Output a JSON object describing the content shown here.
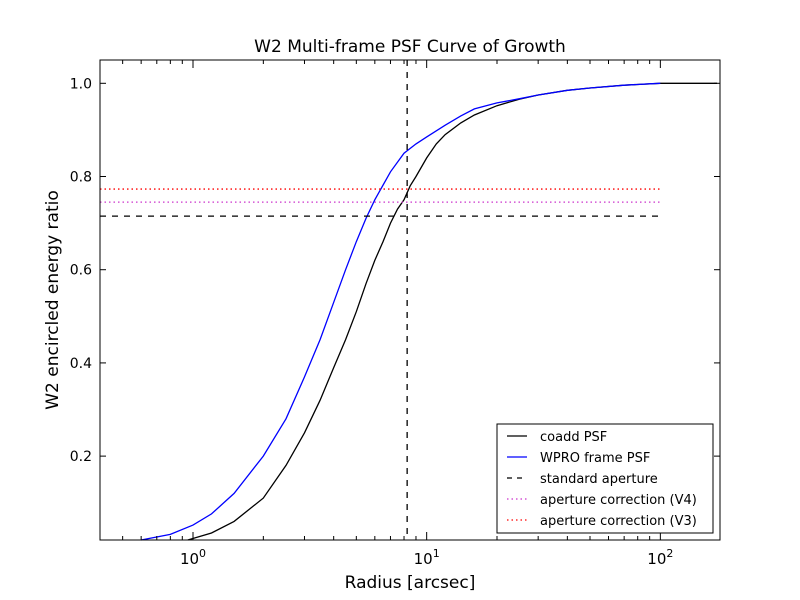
{
  "chart_data": {
    "type": "line",
    "title": "W2 Multi-frame PSF Curve of Growth",
    "xlabel": "Radius [arcsec]",
    "ylabel": "W2 encircled energy ratio",
    "xscale": "log",
    "xlim": [
      0.4,
      180
    ],
    "ylim": [
      0.02,
      1.05
    ],
    "grid": false,
    "legend_position": "lower-right",
    "x_ticks": [
      {
        "value": 1,
        "base": "10",
        "exp": "0"
      },
      {
        "value": 10,
        "base": "10",
        "exp": "1"
      },
      {
        "value": 100,
        "base": "10",
        "exp": "2"
      }
    ],
    "y_ticks": [
      {
        "value": 0.2,
        "label": "0.2"
      },
      {
        "value": 0.4,
        "label": "0.4"
      },
      {
        "value": 0.6,
        "label": "0.6"
      },
      {
        "value": 0.8,
        "label": "0.8"
      },
      {
        "value": 1.0,
        "label": "1.0"
      }
    ],
    "series": [
      {
        "name": "coadd PSF",
        "color": "#000000",
        "style": "solid",
        "x": [
          0.95,
          1.2,
          1.5,
          2.0,
          2.5,
          3.0,
          3.5,
          4.0,
          4.5,
          5.0,
          5.5,
          6.0,
          6.5,
          7.0,
          7.5,
          8.0,
          8.5,
          9.0,
          10.0,
          11.0,
          12.0,
          14.0,
          16.0,
          20.0,
          25.0,
          30.0,
          40.0,
          50.0,
          70.0,
          100.0,
          115.0,
          175.0
        ],
        "y": [
          0.02,
          0.035,
          0.06,
          0.11,
          0.18,
          0.25,
          0.32,
          0.39,
          0.45,
          0.51,
          0.57,
          0.62,
          0.66,
          0.7,
          0.73,
          0.75,
          0.78,
          0.8,
          0.84,
          0.87,
          0.89,
          0.915,
          0.932,
          0.952,
          0.966,
          0.975,
          0.985,
          0.99,
          0.996,
          1.0,
          1.0,
          1.0
        ]
      },
      {
        "name": "WPRO frame PSF",
        "color": "#0000ff",
        "style": "solid",
        "x": [
          0.6,
          0.8,
          1.0,
          1.2,
          1.5,
          2.0,
          2.5,
          3.0,
          3.5,
          4.0,
          4.5,
          5.0,
          5.5,
          6.0,
          7.0,
          8.0,
          9.0,
          10.0,
          12.0,
          14.0,
          16.0,
          20.0,
          25.0,
          30.0,
          40.0,
          50.0,
          70.0,
          90.0,
          100.0
        ],
        "y": [
          0.02,
          0.032,
          0.052,
          0.076,
          0.12,
          0.2,
          0.28,
          0.37,
          0.45,
          0.53,
          0.6,
          0.66,
          0.71,
          0.75,
          0.81,
          0.85,
          0.87,
          0.885,
          0.91,
          0.93,
          0.945,
          0.958,
          0.967,
          0.975,
          0.985,
          0.99,
          0.996,
          0.999,
          1.0
        ]
      },
      {
        "name": "standard aperture",
        "color": "#000000",
        "style": "dashed",
        "horizontal": {
          "y": 0.715,
          "x": [
            0.4,
            100
          ]
        },
        "vertical": {
          "x": 8.25
        }
      },
      {
        "name": "aperture correction (V4)",
        "color": "#cc33cc",
        "style": "dotted",
        "horizontal": {
          "y": 0.745,
          "x": [
            0.4,
            100
          ]
        }
      },
      {
        "name": "aperture correction (V3)",
        "color": "#ff0000",
        "style": "dotted",
        "horizontal": {
          "y": 0.773,
          "x": [
            0.4,
            100
          ]
        }
      }
    ]
  }
}
